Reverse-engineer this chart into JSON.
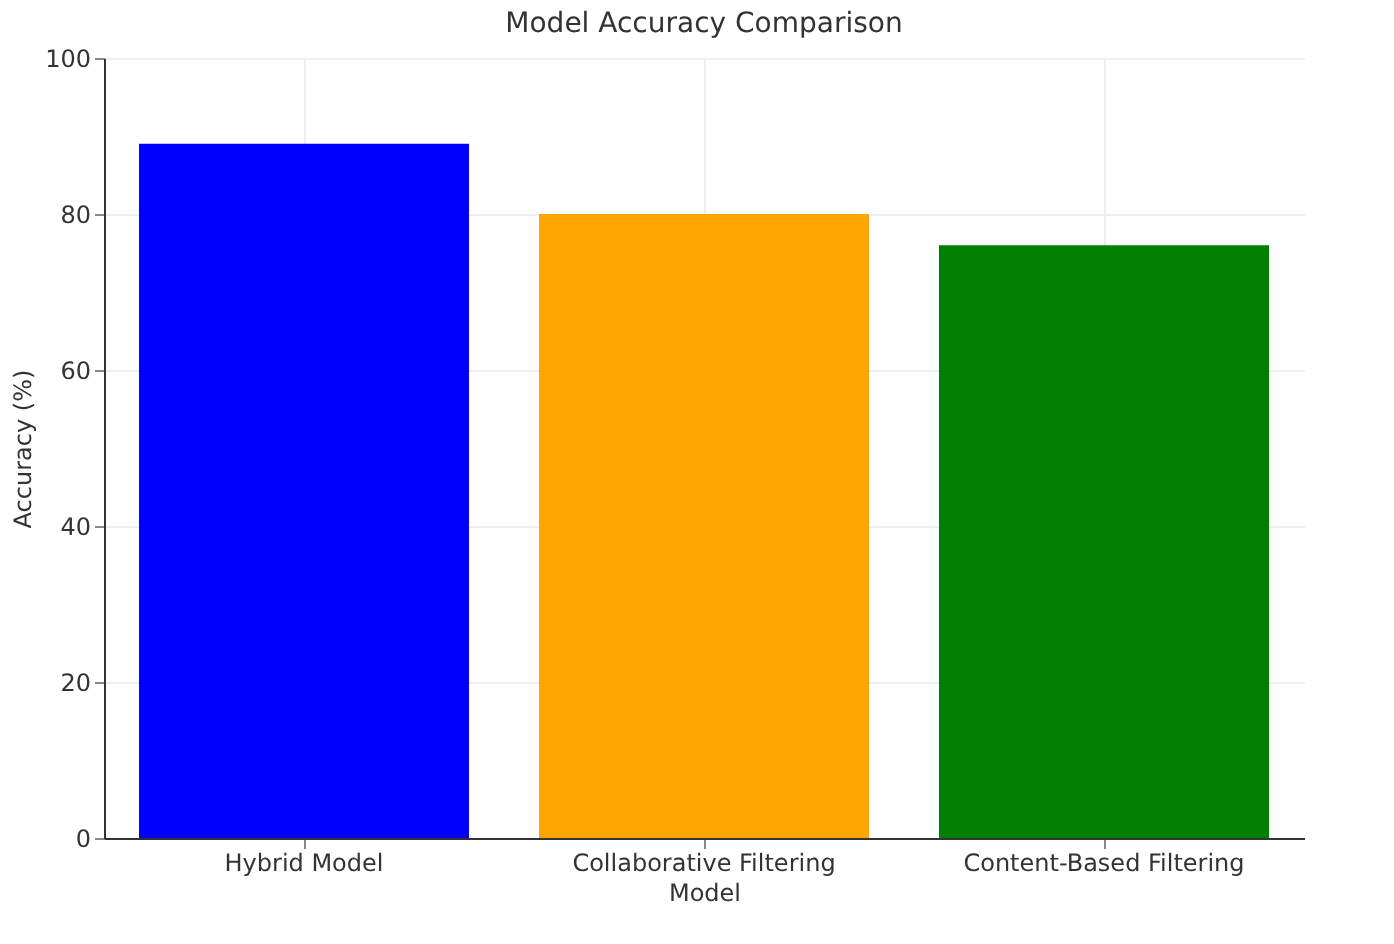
{
  "chart_data": {
    "type": "bar",
    "title": "Model Accuracy Comparison",
    "xlabel": "Model",
    "ylabel": "Accuracy (%)",
    "categories": [
      "Hybrid Model",
      "Collaborative Filtering",
      "Content-Based Filtering"
    ],
    "values": [
      89,
      80,
      76
    ],
    "colors": [
      "#0000ff",
      "#ffa500",
      "#008000"
    ],
    "ylim": [
      0,
      100
    ],
    "yticks": [
      0,
      20,
      40,
      60,
      80,
      100
    ],
    "grid": true
  }
}
